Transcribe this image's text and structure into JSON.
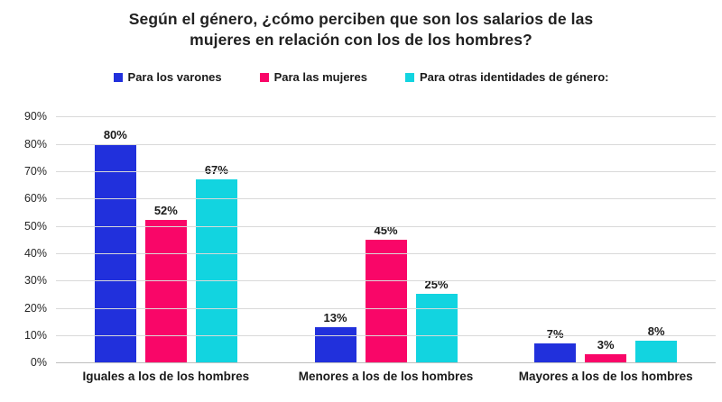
{
  "chart_data": {
    "type": "bar",
    "title": "Según el género, ¿cómo perciben que son los salarios de las\nmujeres en relación con los de los hombres?",
    "categories": [
      "Iguales a los de los hombres",
      "Menores a los de los hombres",
      "Mayores a los de los hombres"
    ],
    "series": [
      {
        "name": "Para los varones",
        "color": "#2130DC",
        "values": [
          80,
          13,
          7
        ]
      },
      {
        "name": "Para las mujeres",
        "color": "#F90668",
        "values": [
          52,
          45,
          3
        ]
      },
      {
        "name": "Para otras identidades de género:",
        "color": "#12D4E0",
        "values": [
          67,
          25,
          8
        ]
      }
    ],
    "data_labels": [
      "80%",
      "52%",
      "67%",
      "13%",
      "45%",
      "25%",
      "7%",
      "3%",
      "8%"
    ],
    "value_suffix": "%",
    "ylim": [
      0,
      90
    ],
    "ytick_step": 10,
    "ytick_labels": [
      "0%",
      "10%",
      "20%",
      "30%",
      "40%",
      "50%",
      "60%",
      "70%",
      "80%",
      "90%"
    ],
    "grid": true,
    "legend_position": "top"
  },
  "colors": {
    "title_text": "#212121",
    "label_text": "#1a1a1a",
    "gridline": "#d9d9d9",
    "axis_line": "#bfbfbf",
    "background": "#ffffff"
  }
}
